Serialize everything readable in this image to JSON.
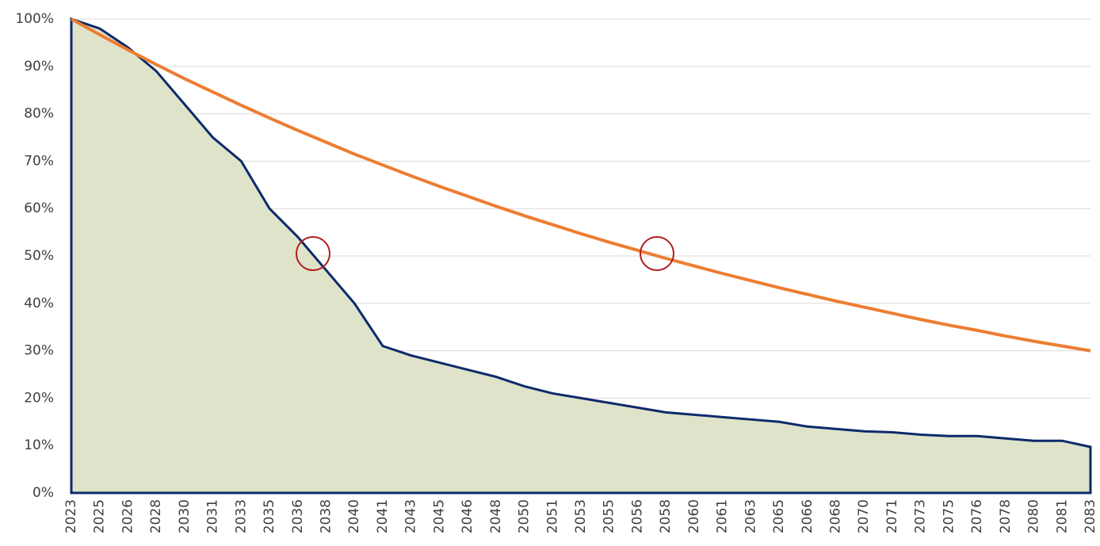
{
  "chart_data": {
    "type": "line",
    "categories": [
      "2023",
      "2025",
      "2026",
      "2028",
      "2030",
      "2031",
      "2033",
      "2035",
      "2036",
      "2038",
      "2040",
      "2041",
      "2043",
      "2045",
      "2046",
      "2048",
      "2050",
      "2051",
      "2053",
      "2055",
      "2056",
      "2058",
      "2060",
      "2061",
      "2063",
      "2065",
      "2066",
      "2068",
      "2070",
      "2071",
      "2073",
      "2075",
      "2076",
      "2078",
      "2080",
      "2081",
      "2083"
    ],
    "series": [
      {
        "color": "#0d2a6b",
        "values": [
          100,
          98,
          94,
          89,
          82,
          75,
          70,
          60,
          54,
          47,
          40,
          31,
          29,
          27.5,
          26,
          24.5,
          22.5,
          21,
          20,
          19,
          18,
          17,
          16.5,
          16,
          15.5,
          15,
          14,
          13.5,
          13,
          12.8,
          12.3,
          12,
          12,
          11.5,
          11,
          11,
          9.7
        ]
      },
      {
        "color": "#ed7d31",
        "values": [
          100,
          96.7,
          93.5,
          90.4,
          87.4,
          84.6,
          81.8,
          79.1,
          76.5,
          74.0,
          71.5,
          69.2,
          66.9,
          64.7,
          62.6,
          60.5,
          58.5,
          56.6,
          54.7,
          52.9,
          51.2,
          49.5,
          47.9,
          46.3,
          44.8,
          43.3,
          41.9,
          40.5,
          39.2,
          37.9,
          36.6,
          35.4,
          34.3,
          33.1,
          32.0,
          31.0,
          30.0
        ]
      }
    ],
    "ylim": [
      0,
      100
    ],
    "yticks": [
      {
        "value": 0,
        "label": "0%"
      },
      {
        "value": 10,
        "label": "10%"
      },
      {
        "value": 20,
        "label": "20%"
      },
      {
        "value": 30,
        "label": "30%"
      },
      {
        "value": 40,
        "label": "40%"
      },
      {
        "value": 50,
        "label": "50%"
      },
      {
        "value": 60,
        "label": "60%"
      },
      {
        "value": 70,
        "label": "70%"
      },
      {
        "value": 80,
        "label": "80%"
      },
      {
        "value": 90,
        "label": "90%"
      },
      {
        "value": 100,
        "label": "100%"
      }
    ],
    "grid": true
  }
}
